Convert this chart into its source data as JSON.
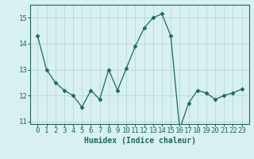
{
  "x": [
    0,
    1,
    2,
    3,
    4,
    5,
    6,
    7,
    8,
    9,
    10,
    11,
    12,
    13,
    14,
    15,
    16,
    17,
    18,
    19,
    20,
    21,
    22,
    23
  ],
  "y": [
    14.3,
    13.0,
    12.5,
    12.2,
    12.0,
    11.55,
    12.2,
    11.85,
    13.0,
    12.2,
    13.05,
    13.9,
    14.6,
    15.0,
    15.15,
    14.3,
    10.7,
    11.7,
    12.2,
    12.1,
    11.85,
    12.0,
    12.1,
    12.25
  ],
  "line_color": "#1a6b5a",
  "marker": "D",
  "marker_size": 2.5,
  "bg_color": "#d8f0f0",
  "grid_color": "#b8d8d8",
  "xlabel": "Humidex (Indice chaleur)",
  "ylim": [
    10.9,
    15.5
  ],
  "yticks": [
    11,
    12,
    13,
    14,
    15
  ],
  "xticks": [
    0,
    1,
    2,
    3,
    4,
    5,
    6,
    7,
    8,
    9,
    10,
    11,
    12,
    13,
    14,
    15,
    16,
    17,
    18,
    19,
    20,
    21,
    22,
    23
  ],
  "tick_color": "#1a6b5a",
  "label_fontsize": 7,
  "tick_fontsize": 6.5
}
